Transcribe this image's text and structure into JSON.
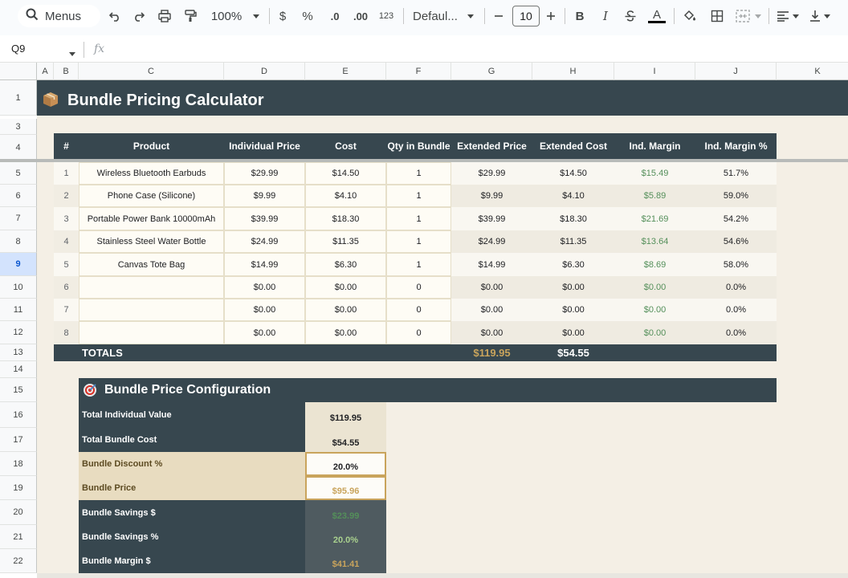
{
  "toolbar": {
    "menus_label": "Menus",
    "zoom": "100%",
    "currency": "$",
    "percent": "%",
    "dec_decrease": ".0",
    "dec_increase": ".00",
    "more_formats": "123",
    "font_family": "Defaul...",
    "font_size": "10",
    "bold": "B",
    "italic": "I",
    "text_color": "A"
  },
  "formula_bar": {
    "cell_ref": "Q9",
    "fx": "fx",
    "content": ""
  },
  "columns": [
    "A",
    "B",
    "C",
    "D",
    "E",
    "F",
    "G",
    "H",
    "I",
    "J",
    "K"
  ],
  "rows": [
    "1",
    "3",
    "4",
    "5",
    "6",
    "7",
    "8",
    "9",
    "10",
    "11",
    "12",
    "13",
    "14",
    "15",
    "16",
    "17",
    "18",
    "19",
    "20",
    "21",
    "22"
  ],
  "selected_row": "9",
  "sheet": {
    "title": "Bundle Pricing Calculator",
    "title_icon": "package-icon",
    "headers": [
      "#",
      "Product",
      "Individual Price",
      "Cost",
      "Qty in Bundle",
      "Extended Price",
      "Extended Cost",
      "Ind. Margin",
      "Ind. Margin %"
    ],
    "products": [
      {
        "n": "1",
        "product": "Wireless Bluetooth Earbuds",
        "price": "$29.99",
        "cost": "$14.50",
        "qty": "1",
        "ext_price": "$29.99",
        "ext_cost": "$14.50",
        "margin": "$15.49",
        "margin_pct": "51.7%"
      },
      {
        "n": "2",
        "product": "Phone Case (Silicone)",
        "price": "$9.99",
        "cost": "$4.10",
        "qty": "1",
        "ext_price": "$9.99",
        "ext_cost": "$4.10",
        "margin": "$5.89",
        "margin_pct": "59.0%"
      },
      {
        "n": "3",
        "product": "Portable Power Bank 10000mAh",
        "price": "$39.99",
        "cost": "$18.30",
        "qty": "1",
        "ext_price": "$39.99",
        "ext_cost": "$18.30",
        "margin": "$21.69",
        "margin_pct": "54.2%"
      },
      {
        "n": "4",
        "product": "Stainless Steel Water Bottle",
        "price": "$24.99",
        "cost": "$11.35",
        "qty": "1",
        "ext_price": "$24.99",
        "ext_cost": "$11.35",
        "margin": "$13.64",
        "margin_pct": "54.6%"
      },
      {
        "n": "5",
        "product": "Canvas Tote Bag",
        "price": "$14.99",
        "cost": "$6.30",
        "qty": "1",
        "ext_price": "$14.99",
        "ext_cost": "$6.30",
        "margin": "$8.69",
        "margin_pct": "58.0%"
      },
      {
        "n": "6",
        "product": "",
        "price": "$0.00",
        "cost": "$0.00",
        "qty": "0",
        "ext_price": "$0.00",
        "ext_cost": "$0.00",
        "margin": "$0.00",
        "margin_pct": "0.0%"
      },
      {
        "n": "7",
        "product": "",
        "price": "$0.00",
        "cost": "$0.00",
        "qty": "0",
        "ext_price": "$0.00",
        "ext_cost": "$0.00",
        "margin": "$0.00",
        "margin_pct": "0.0%"
      },
      {
        "n": "8",
        "product": "",
        "price": "$0.00",
        "cost": "$0.00",
        "qty": "0",
        "ext_price": "$0.00",
        "ext_cost": "$0.00",
        "margin": "$0.00",
        "margin_pct": "0.0%"
      }
    ],
    "totals": {
      "label": "TOTALS",
      "ext_price": "$119.95",
      "ext_cost": "$54.55"
    },
    "config_title": "Bundle Price Configuration",
    "config_icon": "target-icon",
    "config": [
      {
        "label": "Total Individual Value",
        "value": "$119.95"
      },
      {
        "label": "Total Bundle Cost",
        "value": "$54.55"
      },
      {
        "label": "Bundle Discount %",
        "value": "20.0%"
      },
      {
        "label": "Bundle Price",
        "value": "$95.96"
      },
      {
        "label": "Bundle Savings $",
        "value": "$23.99"
      },
      {
        "label": "Bundle Savings %",
        "value": "20.0%"
      },
      {
        "label": "Bundle Margin $",
        "value": "$41.41"
      }
    ]
  },
  "colors": {
    "dark_header": "#37474f",
    "beige_bg": "#f4efe5",
    "highlight": "#e8dcc0",
    "margin_green": "#548f5a",
    "gold": "#c9a45c",
    "selection_blue": "#d3e3fd"
  }
}
